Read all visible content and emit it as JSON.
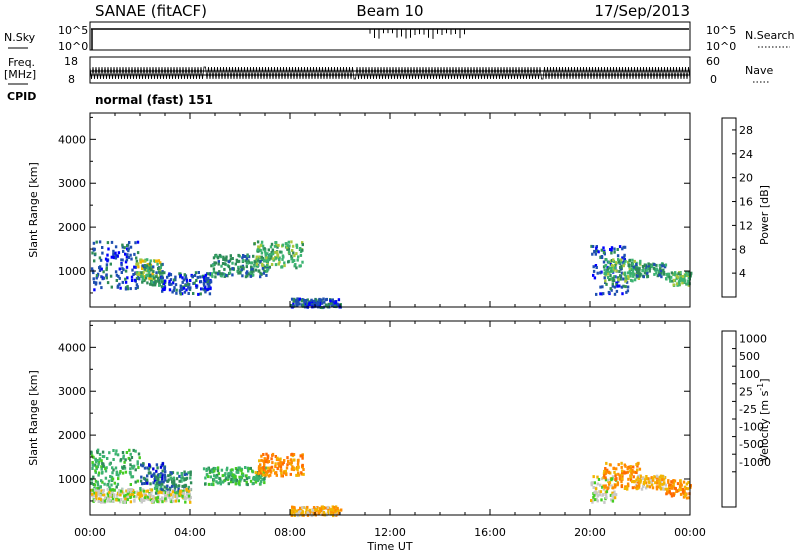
{
  "header": {
    "title": "SANAE (fitACF)",
    "beam": "Beam 10",
    "date": "17/Sep/2013"
  },
  "colors": {
    "power": [
      "#0000ff",
      "#1f4fb0",
      "#2e8b57",
      "#3cb371",
      "#a8c83c",
      "#f2b400",
      "#ff8c00",
      "#ff6a00",
      "#ff0000"
    ],
    "velocity": [
      "#0000d8",
      "#1f4fb0",
      "#2e8b57",
      "#3cb371",
      "#44cc22",
      "#c8c8c8",
      "#f2b400",
      "#ff8c00",
      "#ff6a00",
      "#ff0000"
    ],
    "ground_scatter": "#c8c8c8"
  },
  "chart_data": [
    {
      "type": "line",
      "name": "noise",
      "left_label": "N.Sky",
      "right_label": "N.Search",
      "left_ticks": [
        "10^5",
        "10^0"
      ],
      "right_ticks": [
        "10^5",
        "10^0"
      ],
      "x": [
        0,
        24
      ],
      "level": 0.75
    },
    {
      "type": "line",
      "name": "frequency",
      "left_label_top": "Freq.",
      "left_label_bottom": "[MHz]",
      "right_label": "Nave",
      "left_ticks": [
        18,
        8
      ],
      "right_ticks": [
        60,
        0
      ],
      "freq_range": [
        8,
        18
      ],
      "nave_range": [
        0,
        60
      ],
      "cpid_label": "CPID",
      "cpid_text": "normal (fast) 151"
    },
    {
      "type": "heatmap",
      "name": "power",
      "ylabel": "Slant Range [km]",
      "yticks": [
        1000,
        2000,
        3000,
        4000
      ],
      "ylim": [
        180,
        4600
      ],
      "xlim": [
        0,
        24
      ],
      "colorbar": {
        "label": "Power [dB]",
        "ticks": [
          "4",
          "8",
          "12",
          "16",
          "20",
          "24",
          "28"
        ],
        "range": [
          0,
          30
        ]
      },
      "scatter_regions": [
        {
          "t": [
            0.0,
            2.0
          ],
          "r": [
            600,
            1700
          ],
          "level": 1
        },
        {
          "t": [
            1.8,
            2.8
          ],
          "r": [
            800,
            1300
          ],
          "level": 4
        },
        {
          "t": [
            2.0,
            3.0
          ],
          "r": [
            700,
            1200
          ],
          "level": 2
        },
        {
          "t": [
            2.8,
            4.8
          ],
          "r": [
            500,
            1000
          ],
          "level": 1
        },
        {
          "t": [
            4.8,
            7.2
          ],
          "r": [
            900,
            1400
          ],
          "level": 2
        },
        {
          "t": [
            6.5,
            8.5
          ],
          "r": [
            1100,
            1700
          ],
          "level": 3
        },
        {
          "t": [
            8.0,
            10.0
          ],
          "r": [
            200,
            400
          ],
          "level": 1
        },
        {
          "t": [
            20.0,
            21.5
          ],
          "r": [
            500,
            1600
          ],
          "level": 1
        },
        {
          "t": [
            20.5,
            22.0
          ],
          "r": [
            800,
            1300
          ],
          "level": 3
        },
        {
          "t": [
            21.5,
            23.0
          ],
          "r": [
            900,
            1200
          ],
          "level": 2
        },
        {
          "t": [
            23.0,
            24.0
          ],
          "r": [
            700,
            1000
          ],
          "level": 3
        }
      ]
    },
    {
      "type": "heatmap",
      "name": "velocity",
      "ylabel": "Slant Range [km]",
      "yticks": [
        1000,
        2000,
        3000,
        4000
      ],
      "ylim": [
        180,
        4600
      ],
      "xlim": [
        0,
        24
      ],
      "xticks": [
        "00:00",
        "04:00",
        "08:00",
        "12:00",
        "16:00",
        "20:00",
        "00:00"
      ],
      "xlabel": "Time UT",
      "colorbar": {
        "label": "Velocity [m s",
        "label_sup": "-1",
        "label_close": "]",
        "ticks": [
          "1000",
          "500",
          "100",
          "25",
          "-25",
          "-100",
          "-500",
          "-1000"
        ]
      },
      "scatter_regions": [
        {
          "t": [
            0.0,
            2.0
          ],
          "r": [
            800,
            1700
          ],
          "level": 3
        },
        {
          "t": [
            2.0,
            3.0
          ],
          "r": [
            900,
            1400
          ],
          "level": 1
        },
        {
          "t": [
            2.5,
            4.0
          ],
          "r": [
            700,
            1200
          ],
          "level": 2
        },
        {
          "t": [
            4.5,
            7.0
          ],
          "r": [
            900,
            1300
          ],
          "level": 3
        },
        {
          "t": [
            6.5,
            8.5
          ],
          "r": [
            1100,
            1600
          ],
          "level": 7
        },
        {
          "t": [
            0.0,
            4.0
          ],
          "r": [
            500,
            800
          ],
          "level": 5
        },
        {
          "t": [
            8.0,
            10.0
          ],
          "r": [
            200,
            400
          ],
          "level": 6
        },
        {
          "t": [
            20.0,
            21.0
          ],
          "r": [
            500,
            1100
          ],
          "level": 5
        },
        {
          "t": [
            20.5,
            22.0
          ],
          "r": [
            800,
            1400
          ],
          "level": 7
        },
        {
          "t": [
            21.8,
            23.0
          ],
          "r": [
            800,
            1100
          ],
          "level": 6
        },
        {
          "t": [
            23.0,
            24.0
          ],
          "r": [
            600,
            1000
          ],
          "level": 7
        }
      ]
    }
  ]
}
